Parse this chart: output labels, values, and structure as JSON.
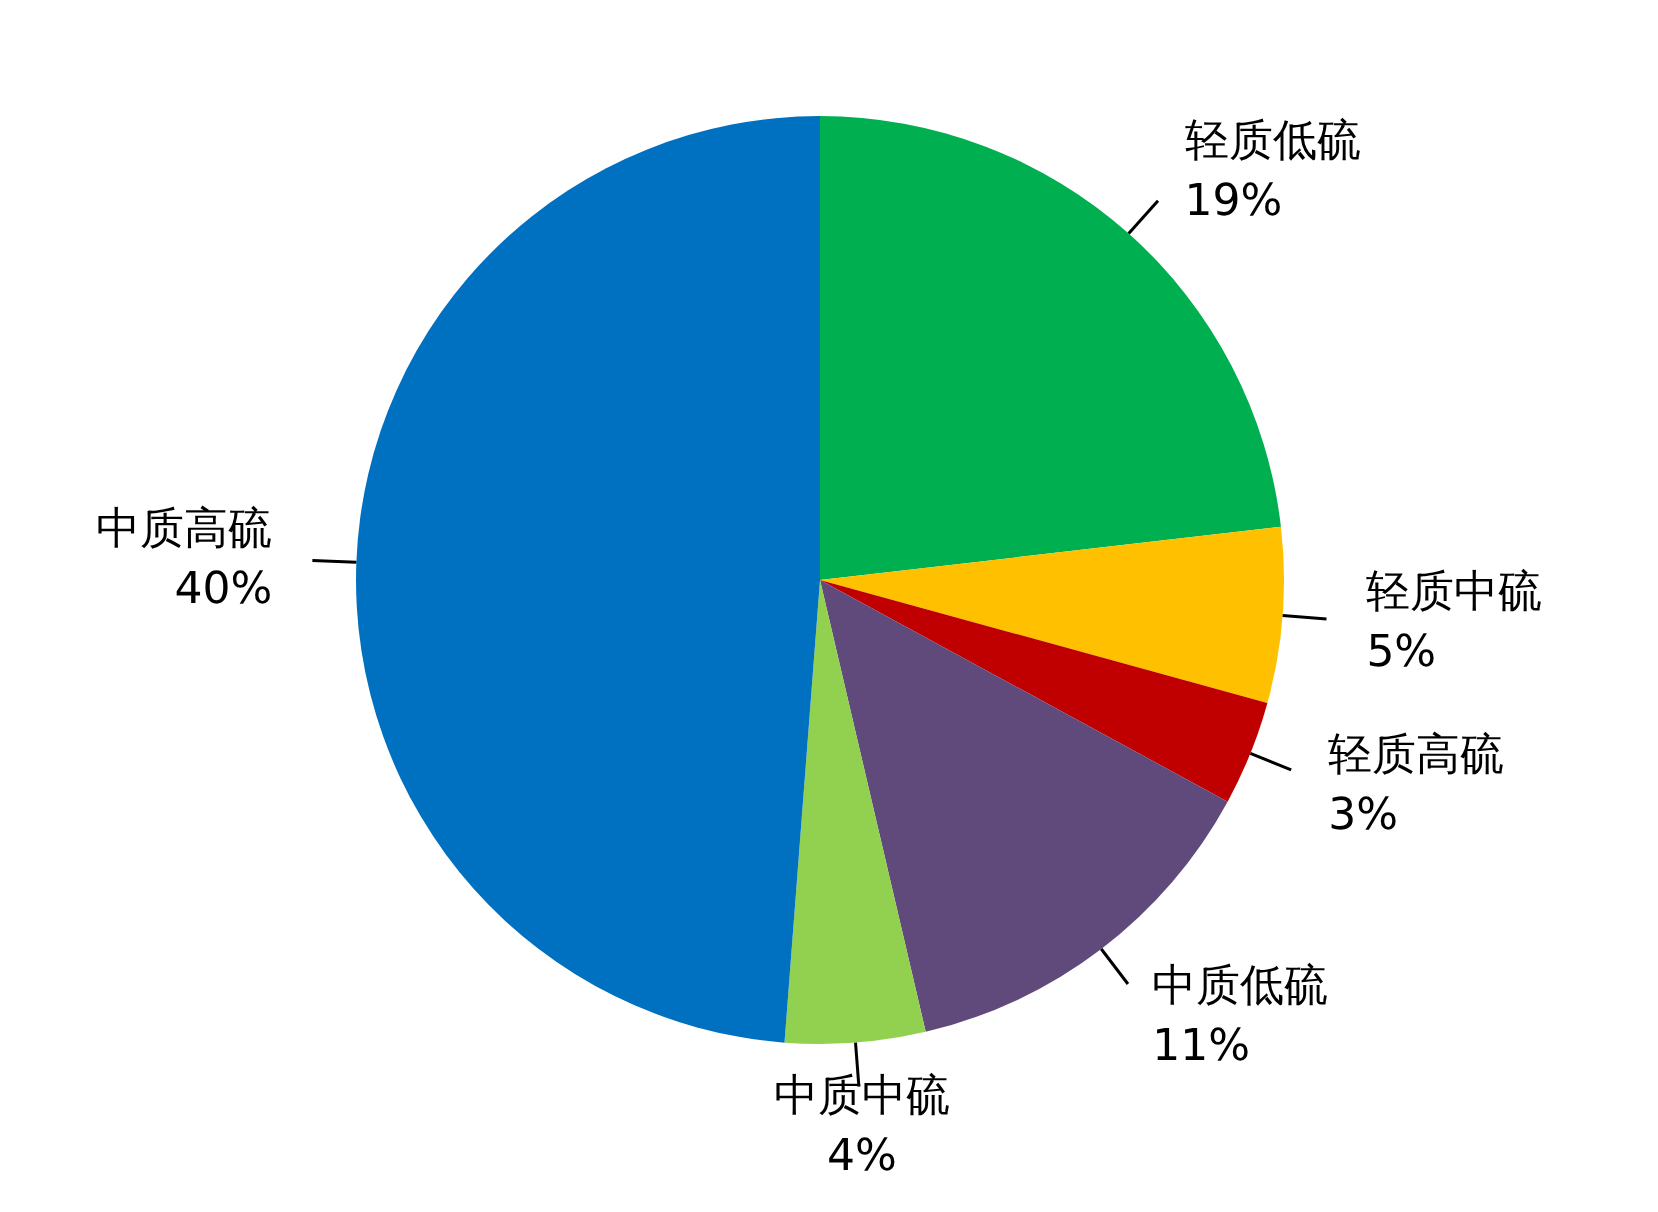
{
  "chart_data": {
    "type": "pie",
    "categories": [
      "轻质低硫",
      "轻质中硫",
      "轻质高硫",
      "中质低硫",
      "中质中硫",
      "中质高硫"
    ],
    "values": [
      19,
      5,
      3,
      11,
      4,
      40
    ],
    "colors": [
      "#00b050",
      "#ffc000",
      "#c00000",
      "#604a7b",
      "#92d050",
      "#0070c0"
    ],
    "value_labels": [
      "19%",
      "5%",
      "3%",
      "11%",
      "4%",
      "40%"
    ]
  }
}
